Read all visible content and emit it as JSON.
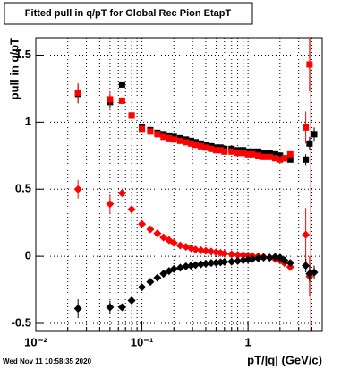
{
  "chart_data": {
    "type": "scatter",
    "title": "Fitted pull in q/pT for Global Rec Pion EtapT",
    "x_label": "pT/|q| (GeV/c)",
    "y_label": "pull in q/pT",
    "footer": "Wed Nov 11 10:58:35 2020",
    "log_x": true,
    "grid": true,
    "xlim": [
      0.01,
      5
    ],
    "ylim": [
      -0.56,
      1.63
    ],
    "xticks": [
      {
        "value": 0.01,
        "label": "10⁻²"
      },
      {
        "value": 0.1,
        "label": "10⁻¹"
      },
      1
    ],
    "xminorticks": [
      0.02,
      0.03,
      0.04,
      0.05,
      0.06,
      0.07,
      0.08,
      0.09,
      0.2,
      0.3,
      0.4,
      0.5,
      0.6,
      0.7,
      0.8,
      0.9,
      2,
      3,
      4
    ],
    "yticks": [
      -0.5,
      0,
      0.5,
      1,
      1.5
    ],
    "vline": 3.9,
    "vline_color": "#e00000",
    "x": [
      0.025,
      0.05,
      0.065,
      0.08,
      0.1,
      0.12,
      0.14,
      0.16,
      0.18,
      0.2,
      0.23,
      0.26,
      0.29,
      0.32,
      0.36,
      0.4,
      0.45,
      0.5,
      0.55,
      0.6,
      0.7,
      0.8,
      0.9,
      1.0,
      1.1,
      1.25,
      1.4,
      1.6,
      1.8,
      2.0,
      2.2,
      2.5,
      3.5,
      3.8,
      4.2
    ],
    "series": [
      {
        "color": "#000000",
        "marker": "square",
        "values": [
          1.21,
          1.15,
          1.28,
          1.05,
          0.96,
          0.94,
          0.92,
          0.91,
          0.9,
          0.89,
          0.88,
          0.87,
          0.86,
          0.85,
          0.84,
          0.83,
          0.82,
          0.81,
          0.81,
          0.8,
          0.8,
          0.79,
          0.79,
          0.78,
          0.78,
          0.78,
          0.77,
          0.77,
          0.76,
          0.75,
          0.73,
          0.72,
          0.72,
          0.84,
          0.91
        ],
        "errors": [
          0.07,
          0.05,
          null,
          null,
          null,
          null,
          null,
          null,
          null,
          null,
          null,
          null,
          null,
          null,
          null,
          null,
          null,
          null,
          null,
          null,
          null,
          null,
          null,
          null,
          null,
          null,
          null,
          null,
          null,
          null,
          null,
          null,
          0.04,
          0.05,
          0.05
        ]
      },
      {
        "color": "#ff0000",
        "marker": "square",
        "values": [
          1.22,
          1.17,
          1.16,
          1.05,
          0.95,
          0.93,
          0.91,
          0.89,
          0.88,
          0.87,
          0.86,
          0.85,
          0.84,
          0.83,
          0.82,
          0.81,
          0.8,
          0.79,
          0.79,
          0.78,
          0.78,
          0.77,
          0.77,
          0.76,
          0.76,
          0.75,
          0.74,
          0.74,
          0.73,
          0.72,
          0.73,
          0.76,
          0.96,
          1.43,
          null
        ],
        "errors": [
          0.07,
          0.06,
          null,
          null,
          null,
          null,
          null,
          null,
          null,
          null,
          null,
          null,
          null,
          null,
          null,
          null,
          null,
          null,
          null,
          null,
          null,
          null,
          null,
          null,
          null,
          null,
          null,
          null,
          null,
          null,
          null,
          null,
          0.12,
          0.2,
          null
        ]
      },
      {
        "color": "#ff0000",
        "marker": "diamond",
        "values": [
          0.5,
          0.39,
          0.47,
          0.35,
          0.24,
          0.2,
          0.17,
          0.14,
          0.12,
          0.1,
          0.08,
          0.07,
          0.06,
          0.05,
          0.045,
          0.04,
          0.035,
          0.03,
          0.025,
          0.02,
          0.015,
          0.01,
          0.008,
          0.005,
          0.002,
          0.0,
          -0.005,
          -0.01,
          -0.02,
          -0.03,
          -0.05,
          -0.08,
          0.16,
          -0.15,
          null
        ],
        "errors": [
          0.07,
          0.07,
          null,
          null,
          null,
          null,
          null,
          null,
          null,
          null,
          null,
          null,
          null,
          null,
          null,
          null,
          null,
          null,
          null,
          null,
          null,
          null,
          null,
          null,
          null,
          null,
          null,
          null,
          null,
          null,
          null,
          null,
          0.2,
          0.15,
          null
        ]
      },
      {
        "color": "#000000",
        "marker": "diamond",
        "values": [
          -0.39,
          -0.38,
          -0.38,
          -0.33,
          -0.23,
          -0.19,
          -0.16,
          -0.13,
          -0.11,
          -0.095,
          -0.085,
          -0.075,
          -0.07,
          -0.065,
          -0.06,
          -0.055,
          -0.05,
          -0.048,
          -0.045,
          -0.042,
          -0.04,
          -0.035,
          -0.03,
          -0.025,
          -0.02,
          -0.015,
          -0.01,
          -0.01,
          -0.005,
          -0.01,
          -0.03,
          -0.05,
          -0.07,
          -0.13,
          -0.12
        ],
        "errors": [
          0.07,
          0.05,
          null,
          null,
          null,
          null,
          null,
          null,
          null,
          null,
          null,
          null,
          null,
          null,
          null,
          null,
          null,
          null,
          null,
          null,
          null,
          null,
          null,
          null,
          null,
          null,
          null,
          null,
          null,
          null,
          null,
          null,
          0.05,
          0.06,
          0.05
        ]
      }
    ]
  }
}
